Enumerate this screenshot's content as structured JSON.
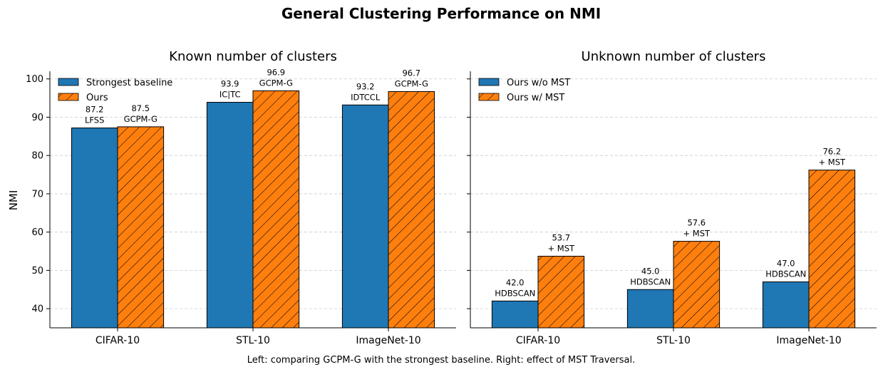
{
  "figure": {
    "title": "General Clustering Performance on NMI",
    "caption": "Left: comparing GCPM-G with the strongest baseline. Right: effect of MST Traversal.",
    "ylabel": "NMI"
  },
  "colors": {
    "blue": "#1f77b4",
    "orange": "#ff7f0e",
    "grid": "#cccccc"
  },
  "chart_data": [
    {
      "type": "bar",
      "title": "Known number of clusters",
      "categories": [
        "CIFAR-10",
        "STL-10",
        "ImageNet-10"
      ],
      "ylabel": "NMI",
      "ylim": [
        35,
        102
      ],
      "yticks": [
        40,
        50,
        60,
        70,
        80,
        90,
        100
      ],
      "grid": "y, dashed",
      "legend_position": "upper-left",
      "series": [
        {
          "name": "Strongest baseline",
          "color": "#1f77b4",
          "hatch": false,
          "values": [
            87.2,
            93.9,
            93.2
          ],
          "labels": [
            "LFSS",
            "IC|TC",
            "IDTCCL"
          ]
        },
        {
          "name": "Ours",
          "color": "#ff7f0e",
          "hatch": true,
          "values": [
            87.5,
            96.9,
            96.7
          ],
          "labels": [
            "GCPM-G",
            "GCPM-G",
            "GCPM-G"
          ]
        }
      ]
    },
    {
      "type": "bar",
      "title": "Unknown number of clusters",
      "categories": [
        "CIFAR-10",
        "STL-10",
        "ImageNet-10"
      ],
      "ylim": [
        35,
        102
      ],
      "yticks": [
        40,
        50,
        60,
        70,
        80,
        90,
        100
      ],
      "grid": "y, dashed",
      "legend_position": "upper-left",
      "series": [
        {
          "name": "Ours w/o MST",
          "color": "#1f77b4",
          "hatch": false,
          "values": [
            42.0,
            45.0,
            47.0
          ],
          "labels": [
            "HDBSCAN",
            "HDBSCAN",
            "HDBSCAN"
          ]
        },
        {
          "name": "Ours w/ MST",
          "color": "#ff7f0e",
          "hatch": true,
          "values": [
            53.7,
            57.6,
            76.2
          ],
          "labels": [
            "+ MST",
            "+ MST",
            "+ MST"
          ]
        }
      ]
    }
  ]
}
